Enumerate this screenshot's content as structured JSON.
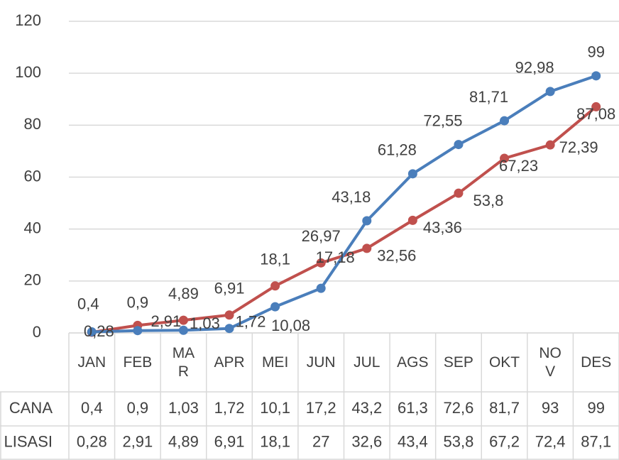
{
  "chart_data": {
    "type": "line",
    "categories": [
      "JAN",
      "FEB",
      "MAR",
      "APR",
      "MEI",
      "JUN",
      "JUL",
      "AGS",
      "SEP",
      "OKT",
      "NOV",
      "DES"
    ],
    "series": [
      {
        "name": "CANA",
        "color": "#4a7ebb",
        "values": [
          0.4,
          0.9,
          1.03,
          1.72,
          10.08,
          17.18,
          43.18,
          61.28,
          72.55,
          81.71,
          92.98,
          99
        ],
        "value_labels": [
          "0,4",
          "0,9",
          "1,03",
          "1,72",
          "10,08",
          "17,18",
          "43,18",
          "61,28",
          "72,55",
          "81,71",
          "92,98",
          "99"
        ],
        "table": [
          "0,4",
          "0,9",
          "1,03",
          "1,72",
          "10,1",
          "17,2",
          "43,2",
          "61,3",
          "72,6",
          "81,7",
          "93",
          "99"
        ]
      },
      {
        "name": "LISASI",
        "color": "#c0504d",
        "values": [
          0.28,
          2.91,
          4.89,
          6.91,
          18.1,
          26.97,
          32.56,
          43.36,
          53.8,
          67.23,
          72.39,
          87.08
        ],
        "value_labels": [
          "0,28",
          "2,91",
          "4,89",
          "6,91",
          "18,1",
          "26,97",
          "32,56",
          "43,36",
          "53,8",
          "67,23",
          "72,39",
          "87,08"
        ],
        "table": [
          "0,28",
          "2,91",
          "4,89",
          "6,91",
          "18,1",
          "27",
          "32,6",
          "43,4",
          "53,8",
          "67,2",
          "72,4",
          "87,1"
        ]
      }
    ],
    "ylim": [
      0,
      120
    ],
    "yticks": [
      0,
      20,
      40,
      60,
      80,
      100,
      120
    ],
    "grid": true
  }
}
